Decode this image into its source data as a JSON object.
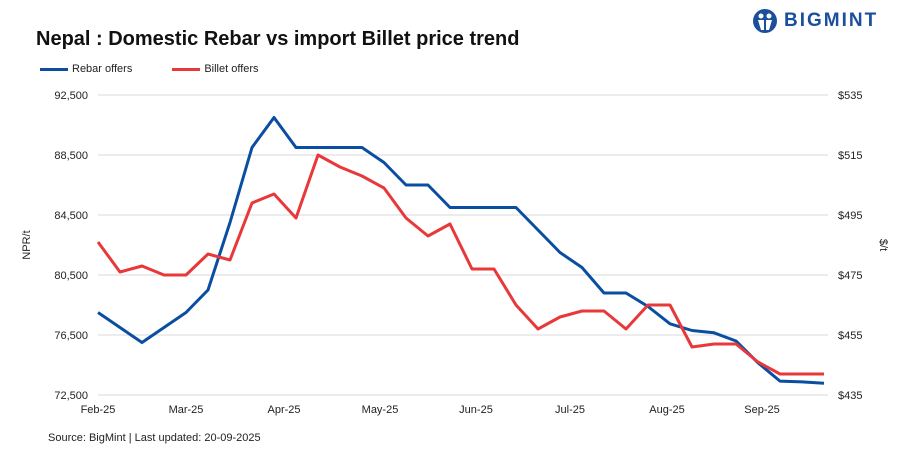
{
  "title": "Nepal : Domestic Rebar vs import Billet price trend",
  "logo": "BIGMINT",
  "source": "Source: BigMint | Last updated: 20-09-2025",
  "chart_data": {
    "type": "line",
    "title": "Nepal : Domestic Rebar vs import Billet price trend",
    "ylabel": "NPR/t",
    "y2label": "$/t",
    "ylim": [
      72500,
      92500
    ],
    "y2lim": [
      435,
      535
    ],
    "yticks": [
      "72,500",
      "76,500",
      "80,500",
      "84,500",
      "88,500",
      "92,500"
    ],
    "y2ticks": [
      "$435",
      "$455",
      "$475",
      "$495",
      "$515",
      "$535"
    ],
    "xticks": [
      "Feb-25",
      "Mar-25",
      "Apr-25",
      "May-25",
      "Jun-25",
      "Jul-25",
      "Aug-25",
      "Sep-25"
    ],
    "grid": true,
    "legend_position": "top-left",
    "series": [
      {
        "name": "Rebar offers",
        "axis": "left",
        "color": "#0a4ea2",
        "values": [
          78000,
          77000,
          76000,
          77000,
          78000,
          79500,
          84000,
          89000,
          91000,
          89000,
          89000,
          89000,
          89000,
          88000,
          86500,
          86500,
          85000,
          85000,
          85000,
          85000,
          83500,
          82000,
          81000,
          79300,
          79300,
          78400,
          77250,
          76800,
          76650,
          76100,
          74650,
          73430,
          73370,
          73280
        ]
      },
      {
        "name": "Billet offers",
        "axis": "right",
        "color": "#e8383a",
        "values": [
          486,
          476,
          478,
          475,
          475,
          482,
          480,
          499,
          502,
          494,
          515,
          511,
          508,
          504,
          494,
          488,
          492,
          477,
          477,
          465,
          457,
          461,
          463,
          463,
          457,
          465,
          465,
          451,
          452,
          452,
          446,
          442,
          442,
          442
        ]
      }
    ]
  }
}
